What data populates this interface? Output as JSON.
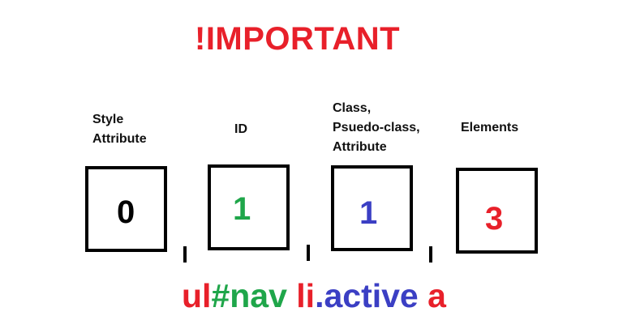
{
  "title": {
    "text": "!IMPORTANT",
    "color": "#e8202a"
  },
  "columns": [
    {
      "label": "Style\nAttribute",
      "value": "0",
      "color": "#000000"
    },
    {
      "label": "ID",
      "value": "1",
      "color": "#1fa64a"
    },
    {
      "label": "Class,\nPsuedo-class,\nAttribute",
      "value": "1",
      "color": "#3b3fc4"
    },
    {
      "label": "Elements",
      "value": "3",
      "color": "#e8202a"
    }
  ],
  "selector": {
    "parts": [
      {
        "text": "ul",
        "color": "#e8202a"
      },
      {
        "text": "#nav",
        "color": "#1fa64a"
      },
      {
        "text": " li",
        "color": "#e8202a"
      },
      {
        "text": ".active",
        "color": "#3b3fc4"
      },
      {
        "text": " a",
        "color": "#e8202a"
      }
    ]
  }
}
